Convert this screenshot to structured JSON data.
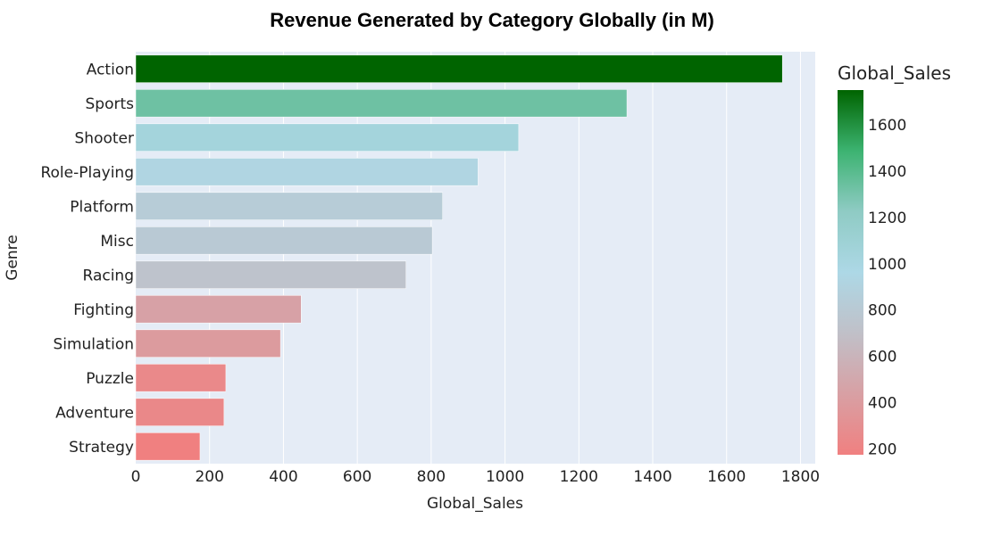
{
  "chart_data": {
    "type": "bar",
    "orientation": "horizontal",
    "title": "Revenue Generated by Category Globally (in M)",
    "xlabel": "Global_Sales",
    "ylabel": "Genre",
    "categories": [
      "Action",
      "Sports",
      "Shooter",
      "Role-Playing",
      "Platform",
      "Misc",
      "Racing",
      "Fighting",
      "Simulation",
      "Puzzle",
      "Adventure",
      "Strategy"
    ],
    "values": [
      1751,
      1330,
      1037,
      927,
      831,
      803,
      732,
      448,
      392,
      244,
      239,
      174
    ],
    "xlim": [
      0,
      1840
    ],
    "xticks": [
      0,
      200,
      400,
      600,
      800,
      1000,
      1200,
      1400,
      1600,
      1800
    ],
    "grid": true,
    "plot_background": "#e5ecf6",
    "colorbar": {
      "title": "Global_Sales",
      "range": [
        174,
        1751
      ],
      "ticks": [
        200,
        400,
        600,
        800,
        1000,
        1200,
        1400,
        1600
      ],
      "colorscale": [
        "#f08080",
        "#d8a0a4",
        "#c0c0c8",
        "#add8e6",
        "#8fcbc4",
        "#3cb371",
        "#006400"
      ]
    }
  }
}
